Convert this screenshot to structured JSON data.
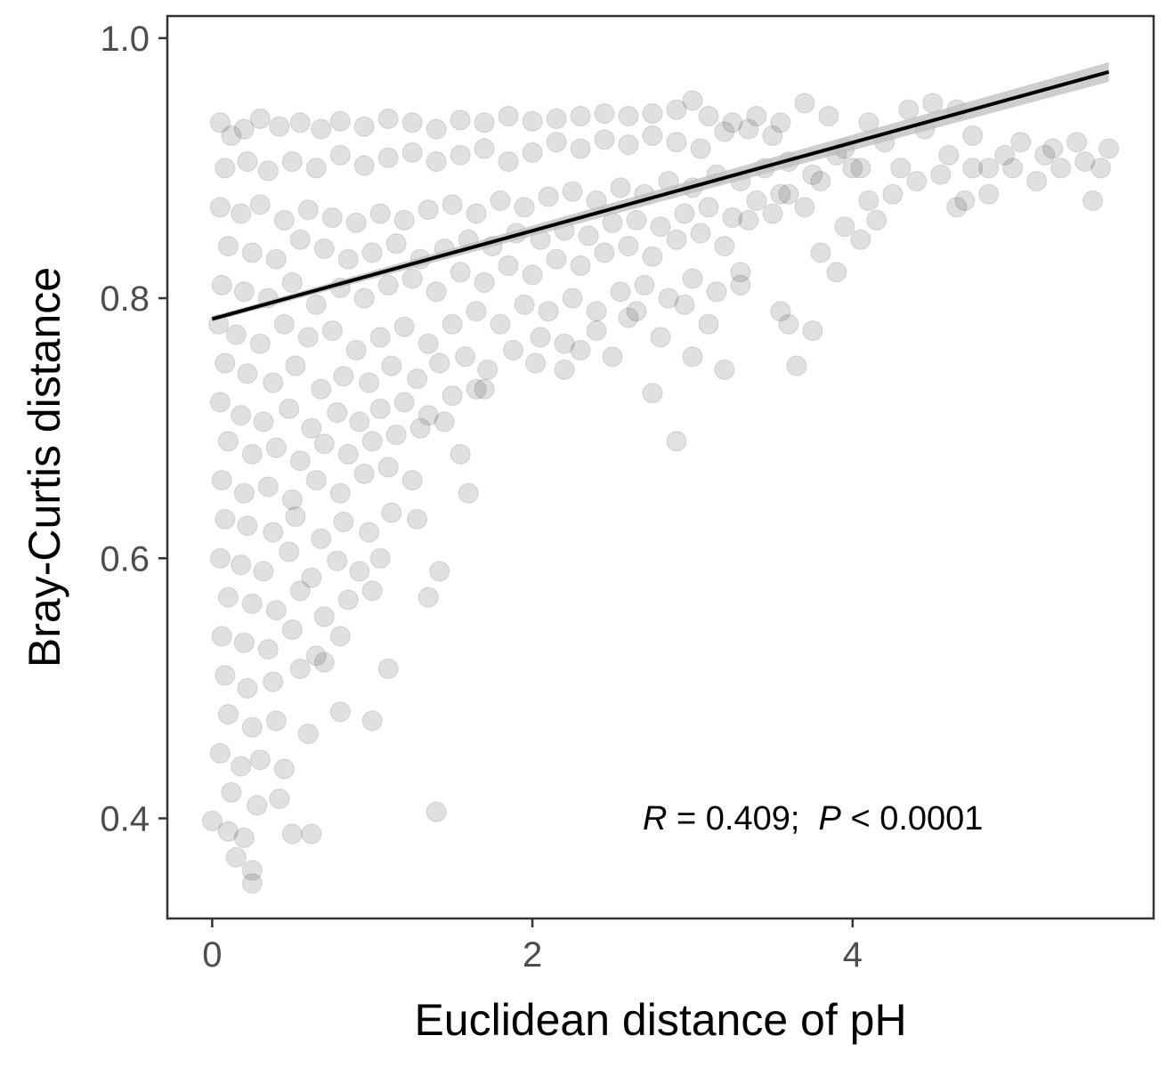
{
  "chart_data": {
    "type": "scatter",
    "title": "",
    "xlabel": "Euclidean distance of pH",
    "ylabel": "Bray-Curtis distance",
    "xlim": [
      -0.28,
      5.88
    ],
    "ylim": [
      0.323,
      1.017
    ],
    "x_ticks": [
      "0",
      "2",
      "4"
    ],
    "y_ticks": [
      "0.4",
      "0.6",
      "0.8",
      "1.0"
    ],
    "grid": false,
    "legend": "none",
    "point_color": "#000000",
    "point_alpha": 0.12,
    "fit_line": {
      "x": [
        0,
        5.6
      ],
      "y": [
        0.784,
        0.974
      ],
      "color": "#000000",
      "ci_color": "#bdbdbd"
    },
    "annotation": {
      "r_label": "R",
      "r_text": " = 0.409;  ",
      "p_label": "P",
      "p_text": " < 0.0001"
    },
    "points": [
      [
        0.05,
        0.935
      ],
      [
        0.12,
        0.925
      ],
      [
        0.2,
        0.93
      ],
      [
        0.3,
        0.938
      ],
      [
        0.42,
        0.932
      ],
      [
        0.55,
        0.935
      ],
      [
        0.68,
        0.93
      ],
      [
        0.8,
        0.936
      ],
      [
        0.95,
        0.932
      ],
      [
        1.1,
        0.938
      ],
      [
        1.25,
        0.935
      ],
      [
        1.4,
        0.93
      ],
      [
        1.55,
        0.937
      ],
      [
        1.7,
        0.935
      ],
      [
        1.85,
        0.94
      ],
      [
        2.0,
        0.936
      ],
      [
        2.15,
        0.938
      ],
      [
        2.3,
        0.94
      ],
      [
        2.45,
        0.942
      ],
      [
        2.6,
        0.94
      ],
      [
        2.75,
        0.942
      ],
      [
        2.9,
        0.945
      ],
      [
        3.0,
        0.952
      ],
      [
        0.08,
        0.9
      ],
      [
        0.22,
        0.905
      ],
      [
        0.35,
        0.898
      ],
      [
        0.5,
        0.905
      ],
      [
        0.65,
        0.9
      ],
      [
        0.8,
        0.91
      ],
      [
        0.95,
        0.902
      ],
      [
        1.1,
        0.908
      ],
      [
        1.25,
        0.912
      ],
      [
        1.4,
        0.905
      ],
      [
        1.55,
        0.91
      ],
      [
        1.7,
        0.915
      ],
      [
        1.85,
        0.905
      ],
      [
        2.0,
        0.912
      ],
      [
        2.15,
        0.92
      ],
      [
        2.3,
        0.915
      ],
      [
        2.45,
        0.922
      ],
      [
        2.6,
        0.918
      ],
      [
        2.75,
        0.925
      ],
      [
        2.9,
        0.92
      ],
      [
        3.05,
        0.915
      ],
      [
        3.2,
        0.928
      ],
      [
        3.35,
        0.93
      ],
      [
        3.5,
        0.925
      ],
      [
        0.05,
        0.87
      ],
      [
        0.18,
        0.865
      ],
      [
        0.3,
        0.872
      ],
      [
        0.45,
        0.86
      ],
      [
        0.6,
        0.868
      ],
      [
        0.75,
        0.862
      ],
      [
        0.9,
        0.858
      ],
      [
        1.05,
        0.865
      ],
      [
        1.2,
        0.86
      ],
      [
        1.35,
        0.868
      ],
      [
        1.5,
        0.872
      ],
      [
        1.65,
        0.865
      ],
      [
        1.8,
        0.875
      ],
      [
        1.95,
        0.87
      ],
      [
        2.1,
        0.878
      ],
      [
        2.25,
        0.882
      ],
      [
        2.4,
        0.875
      ],
      [
        2.55,
        0.885
      ],
      [
        2.7,
        0.88
      ],
      [
        2.85,
        0.89
      ],
      [
        3.0,
        0.885
      ],
      [
        3.15,
        0.895
      ],
      [
        3.3,
        0.89
      ],
      [
        3.45,
        0.9
      ],
      [
        3.6,
        0.905
      ],
      [
        3.75,
        0.895
      ],
      [
        3.9,
        0.91
      ],
      [
        4.0,
        0.9
      ],
      [
        0.1,
        0.84
      ],
      [
        0.25,
        0.835
      ],
      [
        0.4,
        0.83
      ],
      [
        0.55,
        0.845
      ],
      [
        0.7,
        0.838
      ],
      [
        0.85,
        0.83
      ],
      [
        1.0,
        0.835
      ],
      [
        1.15,
        0.842
      ],
      [
        1.3,
        0.83
      ],
      [
        1.45,
        0.838
      ],
      [
        1.6,
        0.845
      ],
      [
        1.75,
        0.84
      ],
      [
        1.9,
        0.85
      ],
      [
        2.05,
        0.845
      ],
      [
        2.2,
        0.852
      ],
      [
        2.35,
        0.848
      ],
      [
        2.5,
        0.858
      ],
      [
        2.65,
        0.86
      ],
      [
        2.8,
        0.855
      ],
      [
        2.95,
        0.865
      ],
      [
        3.1,
        0.87
      ],
      [
        3.25,
        0.862
      ],
      [
        3.4,
        0.875
      ],
      [
        3.55,
        0.88
      ],
      [
        3.7,
        0.87
      ],
      [
        0.06,
        0.81
      ],
      [
        0.2,
        0.805
      ],
      [
        0.35,
        0.8
      ],
      [
        0.5,
        0.812
      ],
      [
        0.65,
        0.795
      ],
      [
        0.8,
        0.808
      ],
      [
        0.95,
        0.8
      ],
      [
        1.1,
        0.81
      ],
      [
        1.25,
        0.815
      ],
      [
        1.4,
        0.805
      ],
      [
        1.55,
        0.82
      ],
      [
        1.7,
        0.812
      ],
      [
        1.85,
        0.825
      ],
      [
        2.0,
        0.818
      ],
      [
        2.15,
        0.83
      ],
      [
        2.3,
        0.825
      ],
      [
        2.45,
        0.835
      ],
      [
        2.6,
        0.84
      ],
      [
        2.75,
        0.832
      ],
      [
        2.9,
        0.845
      ],
      [
        3.05,
        0.85
      ],
      [
        3.2,
        0.84
      ],
      [
        3.35,
        0.86
      ],
      [
        0.04,
        0.78
      ],
      [
        0.15,
        0.772
      ],
      [
        0.3,
        0.765
      ],
      [
        0.45,
        0.78
      ],
      [
        0.6,
        0.77
      ],
      [
        0.75,
        0.775
      ],
      [
        0.9,
        0.76
      ],
      [
        1.05,
        0.77
      ],
      [
        1.2,
        0.778
      ],
      [
        1.35,
        0.765
      ],
      [
        1.5,
        0.78
      ],
      [
        1.65,
        0.79
      ],
      [
        1.8,
        0.78
      ],
      [
        1.95,
        0.795
      ],
      [
        2.1,
        0.79
      ],
      [
        2.25,
        0.8
      ],
      [
        2.4,
        0.79
      ],
      [
        2.55,
        0.805
      ],
      [
        2.7,
        0.81
      ],
      [
        2.85,
        0.8
      ],
      [
        3.0,
        0.815
      ],
      [
        3.15,
        0.805
      ],
      [
        3.3,
        0.82
      ],
      [
        0.08,
        0.75
      ],
      [
        0.22,
        0.742
      ],
      [
        0.38,
        0.735
      ],
      [
        0.52,
        0.748
      ],
      [
        0.68,
        0.73
      ],
      [
        0.82,
        0.74
      ],
      [
        0.98,
        0.735
      ],
      [
        1.12,
        0.748
      ],
      [
        1.28,
        0.738
      ],
      [
        1.42,
        0.75
      ],
      [
        1.58,
        0.755
      ],
      [
        1.72,
        0.745
      ],
      [
        1.88,
        0.76
      ],
      [
        2.02,
        0.75
      ],
      [
        2.2,
        0.765
      ],
      [
        2.4,
        0.775
      ],
      [
        2.6,
        0.785
      ],
      [
        2.8,
        0.77
      ],
      [
        0.05,
        0.72
      ],
      [
        0.18,
        0.71
      ],
      [
        0.32,
        0.705
      ],
      [
        0.48,
        0.715
      ],
      [
        0.62,
        0.7
      ],
      [
        0.78,
        0.712
      ],
      [
        0.92,
        0.705
      ],
      [
        1.05,
        0.715
      ],
      [
        1.2,
        0.72
      ],
      [
        1.35,
        0.71
      ],
      [
        1.5,
        0.725
      ],
      [
        1.65,
        0.73
      ],
      [
        0.1,
        0.69
      ],
      [
        0.25,
        0.68
      ],
      [
        0.4,
        0.685
      ],
      [
        0.55,
        0.675
      ],
      [
        0.7,
        0.688
      ],
      [
        0.85,
        0.68
      ],
      [
        1.0,
        0.69
      ],
      [
        1.15,
        0.695
      ],
      [
        1.3,
        0.7
      ],
      [
        1.45,
        0.705
      ],
      [
        0.06,
        0.66
      ],
      [
        0.2,
        0.65
      ],
      [
        0.35,
        0.655
      ],
      [
        0.5,
        0.645
      ],
      [
        0.65,
        0.66
      ],
      [
        0.8,
        0.65
      ],
      [
        0.95,
        0.665
      ],
      [
        1.1,
        0.67
      ],
      [
        1.25,
        0.66
      ],
      [
        0.08,
        0.63
      ],
      [
        0.22,
        0.625
      ],
      [
        0.38,
        0.62
      ],
      [
        0.52,
        0.632
      ],
      [
        0.68,
        0.615
      ],
      [
        0.82,
        0.628
      ],
      [
        0.98,
        0.62
      ],
      [
        1.12,
        0.635
      ],
      [
        1.28,
        0.63
      ],
      [
        0.05,
        0.6
      ],
      [
        0.18,
        0.595
      ],
      [
        0.32,
        0.59
      ],
      [
        0.48,
        0.605
      ],
      [
        0.62,
        0.585
      ],
      [
        0.78,
        0.598
      ],
      [
        0.92,
        0.59
      ],
      [
        1.05,
        0.6
      ],
      [
        0.1,
        0.57
      ],
      [
        0.25,
        0.565
      ],
      [
        0.4,
        0.56
      ],
      [
        0.55,
        0.575
      ],
      [
        0.7,
        0.555
      ],
      [
        0.85,
        0.568
      ],
      [
        1.0,
        0.575
      ],
      [
        0.06,
        0.54
      ],
      [
        0.2,
        0.535
      ],
      [
        0.35,
        0.53
      ],
      [
        0.5,
        0.545
      ],
      [
        0.65,
        0.525
      ],
      [
        0.8,
        0.54
      ],
      [
        0.08,
        0.51
      ],
      [
        0.22,
        0.5
      ],
      [
        0.38,
        0.505
      ],
      [
        0.55,
        0.515
      ],
      [
        0.7,
        0.52
      ],
      [
        0.1,
        0.48
      ],
      [
        0.25,
        0.47
      ],
      [
        0.4,
        0.475
      ],
      [
        0.6,
        0.465
      ],
      [
        0.8,
        0.482
      ],
      [
        1.0,
        0.475
      ],
      [
        0.05,
        0.45
      ],
      [
        0.18,
        0.44
      ],
      [
        0.3,
        0.445
      ],
      [
        0.45,
        0.438
      ],
      [
        0.12,
        0.42
      ],
      [
        0.28,
        0.41
      ],
      [
        0.42,
        0.415
      ],
      [
        0.0,
        0.398
      ],
      [
        0.1,
        0.39
      ],
      [
        0.2,
        0.385
      ],
      [
        0.5,
        0.388
      ],
      [
        0.62,
        0.388
      ],
      [
        0.15,
        0.37
      ],
      [
        0.25,
        0.36
      ],
      [
        0.25,
        0.35
      ],
      [
        1.4,
        0.405
      ],
      [
        1.1,
        0.515
      ],
      [
        1.42,
        0.59
      ],
      [
        2.9,
        0.69
      ],
      [
        2.75,
        0.727
      ],
      [
        3.6,
        0.78
      ],
      [
        3.75,
        0.775
      ],
      [
        3.65,
        0.748
      ],
      [
        3.2,
        0.745
      ],
      [
        3.3,
        0.81
      ],
      [
        3.55,
        0.79
      ],
      [
        3.8,
        0.835
      ],
      [
        3.9,
        0.82
      ],
      [
        4.05,
        0.845
      ],
      [
        4.1,
        0.875
      ],
      [
        4.25,
        0.88
      ],
      [
        4.4,
        0.89
      ],
      [
        4.55,
        0.895
      ],
      [
        4.7,
        0.875
      ],
      [
        4.85,
        0.88
      ],
      [
        5.0,
        0.9
      ],
      [
        5.15,
        0.89
      ],
      [
        5.3,
        0.9
      ],
      [
        5.45,
        0.905
      ],
      [
        5.6,
        0.915
      ],
      [
        5.5,
        0.875
      ],
      [
        5.55,
        0.9
      ],
      [
        5.2,
        0.91
      ],
      [
        4.95,
        0.91
      ],
      [
        4.6,
        0.91
      ],
      [
        4.3,
        0.9
      ],
      [
        4.2,
        0.92
      ],
      [
        4.45,
        0.93
      ],
      [
        4.75,
        0.925
      ],
      [
        5.05,
        0.92
      ],
      [
        5.25,
        0.915
      ],
      [
        5.4,
        0.92
      ],
      [
        4.5,
        0.95
      ],
      [
        4.65,
        0.945
      ],
      [
        4.35,
        0.945
      ],
      [
        4.1,
        0.935
      ],
      [
        3.85,
        0.94
      ],
      [
        3.7,
        0.95
      ],
      [
        3.55,
        0.935
      ],
      [
        3.4,
        0.94
      ],
      [
        3.25,
        0.935
      ],
      [
        3.1,
        0.94
      ],
      [
        3.95,
        0.915
      ],
      [
        4.05,
        0.9
      ],
      [
        3.6,
        0.88
      ],
      [
        3.8,
        0.89
      ],
      [
        3.5,
        0.865
      ],
      [
        3.95,
        0.855
      ],
      [
        4.15,
        0.86
      ],
      [
        4.65,
        0.87
      ],
      [
        4.85,
        0.9
      ],
      [
        4.75,
        0.9
      ],
      [
        1.35,
        0.57
      ],
      [
        1.6,
        0.65
      ],
      [
        1.7,
        0.73
      ],
      [
        1.55,
        0.68
      ],
      [
        2.05,
        0.77
      ],
      [
        2.3,
        0.76
      ],
      [
        2.5,
        0.755
      ],
      [
        3.0,
        0.755
      ],
      [
        2.65,
        0.79
      ],
      [
        2.95,
        0.795
      ],
      [
        3.1,
        0.78
      ],
      [
        2.2,
        0.745
      ]
    ]
  }
}
